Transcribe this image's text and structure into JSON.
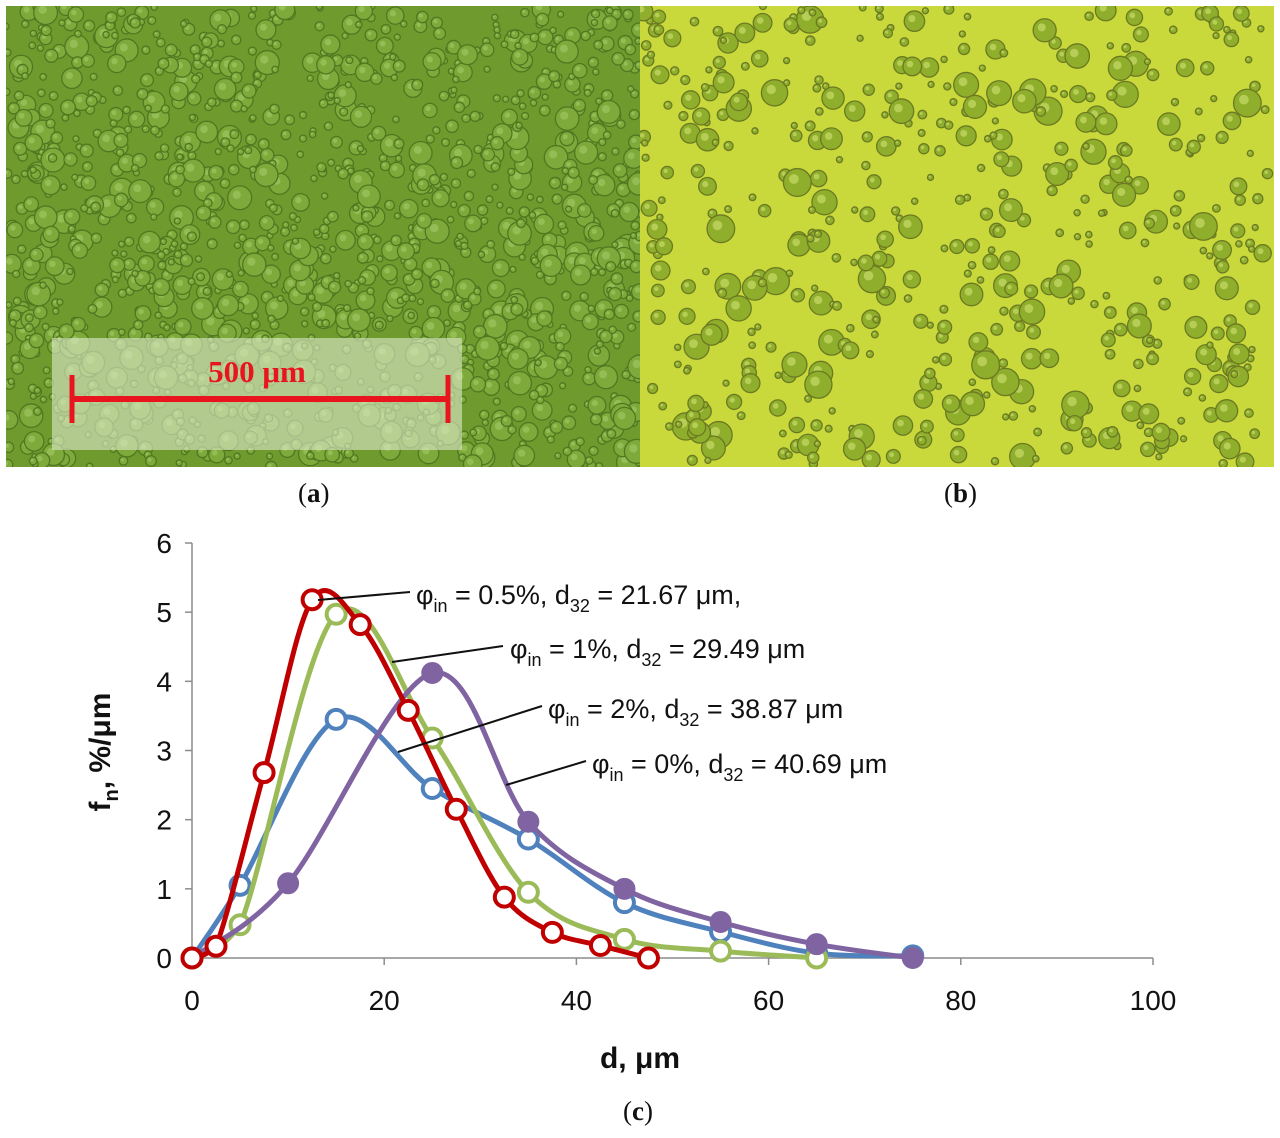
{
  "panels": {
    "a": {
      "caption_open": "(",
      "caption_letter": "a",
      "caption_close": ")",
      "scale_label": "500 μm"
    },
    "b": {
      "caption_open": "(",
      "caption_letter": "b",
      "caption_close": ")"
    },
    "c": {
      "caption_open": "(",
      "caption_letter": "c",
      "caption_close": ")"
    }
  },
  "colors": {
    "micro_a_bg": "#6f9a2e",
    "micro_b_bg": "#c9d83a",
    "scale_red": "#e8141e"
  },
  "chart_data": {
    "type": "line",
    "title": "",
    "xlabel": "d, μm",
    "ylabel": "f_n, %/μm",
    "ylabel_parts": {
      "main": "f",
      "sub": "n",
      "rest": ", %/μm"
    },
    "xlim": [
      0,
      100
    ],
    "ylim": [
      0,
      6
    ],
    "xticks": [
      0,
      20,
      40,
      60,
      80,
      100
    ],
    "yticks": [
      0,
      1,
      2,
      3,
      4,
      5,
      6
    ],
    "grid": false,
    "series": [
      {
        "name": "φin = 2%, d32 = 38.87 μm",
        "color": "#4f81bd",
        "marker": "open",
        "x": [
          0,
          5,
          15,
          25,
          35,
          45,
          55,
          65,
          75
        ],
        "y": [
          0,
          1.05,
          3.45,
          2.45,
          1.72,
          0.8,
          0.38,
          0.07,
          0.03
        ]
      },
      {
        "name": "φin = 1%, d32 = 29.49 μm",
        "color": "#9bbb59",
        "marker": "open",
        "x": [
          0,
          5,
          15,
          25,
          35,
          45,
          55,
          65
        ],
        "y": [
          0,
          0.48,
          4.97,
          3.18,
          0.95,
          0.27,
          0.1,
          0.0
        ]
      },
      {
        "name": "φin = 0%, d32 = 40.69 μm",
        "color": "#8064a2",
        "marker": "filled",
        "x": [
          0,
          10,
          25,
          35,
          45,
          55,
          65,
          75
        ],
        "y": [
          0,
          1.08,
          4.12,
          1.97,
          1.0,
          0.52,
          0.2,
          0.0
        ]
      },
      {
        "name": "φin = 0.5%, d32 = 21.67 μm,",
        "color": "#c00000",
        "marker": "open",
        "x": [
          0,
          2.5,
          7.5,
          12.5,
          17.5,
          22.5,
          27.5,
          32.5,
          37.5,
          42.5,
          47.5
        ],
        "y": [
          0,
          0.17,
          2.68,
          5.18,
          4.82,
          3.58,
          2.15,
          0.88,
          0.37,
          0.18,
          0.0
        ]
      }
    ],
    "annotations": [
      {
        "series": 3,
        "phi_sub": "in",
        "d_sub": "32",
        "pre": "φ",
        "mid": " = 0.5%, d",
        "post": " = 21.67 μm,"
      },
      {
        "series": 1,
        "phi_sub": "in",
        "d_sub": "32",
        "pre": "φ",
        "mid": " = 1%, d",
        "post": " = 29.49 μm"
      },
      {
        "series": 0,
        "phi_sub": "in",
        "d_sub": "32",
        "pre": "φ",
        "mid": " = 2%, d",
        "post": " = 38.87 μm"
      },
      {
        "series": 2,
        "phi_sub": "in",
        "d_sub": "32",
        "pre": "φ",
        "mid": " = 0%, d",
        "post": " = 40.69 μm"
      }
    ]
  }
}
